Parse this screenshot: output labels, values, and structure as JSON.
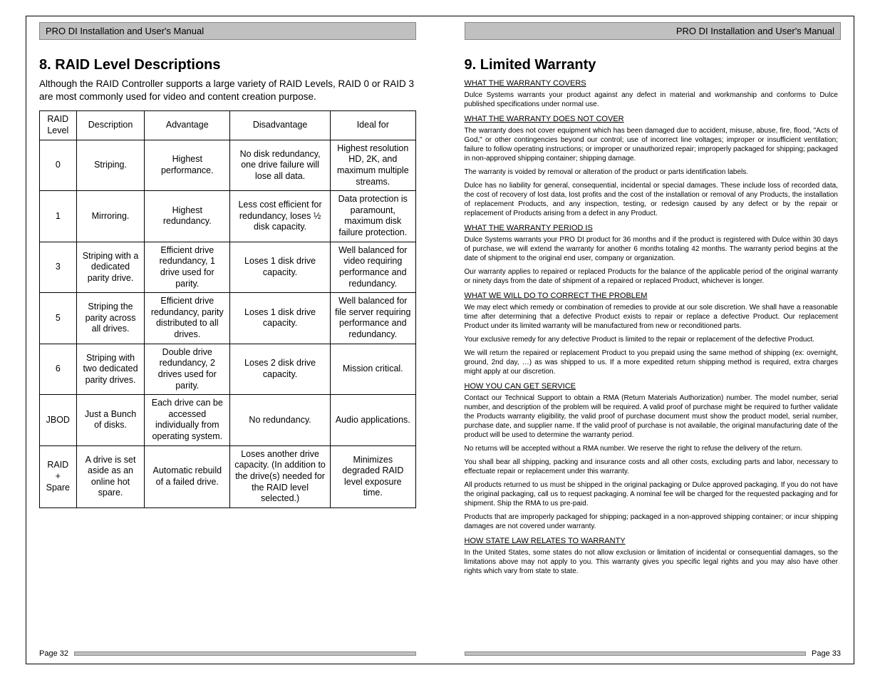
{
  "headerTitle": "PRO DI Installation and User's Manual",
  "leftPage": {
    "heading": "8. RAID Level Descriptions",
    "intro": "Although the RAID Controller supports a large variety of RAID Levels, RAID 0 or RAID 3 are most commonly used for video and content creation purpose.",
    "columns": [
      "RAID Level",
      "Description",
      "Advantage",
      "Disadvantage",
      "Ideal for"
    ],
    "rows": [
      [
        "0",
        "Striping.",
        "Highest performance.",
        "No disk redundancy, one drive failure will lose all data.",
        "Highest resolution HD, 2K, and maximum multiple streams."
      ],
      [
        "1",
        "Mirroring.",
        "Highest redundancy.",
        "Less cost efficient for redundancy, loses ½ disk capacity.",
        "Data protection is paramount, maximum disk failure protection."
      ],
      [
        "3",
        "Striping with a dedicated parity drive.",
        "Efficient drive redundancy, 1 drive used for parity.",
        "Loses 1 disk drive capacity.",
        "Well balanced for video requiring performance and redundancy."
      ],
      [
        "5",
        "Striping the parity across all drives.",
        "Efficient drive redundancy, parity distributed to all drives.",
        "Loses 1 disk drive capacity.",
        "Well balanced for file server requiring performance and redundancy."
      ],
      [
        "6",
        "Striping with two dedicated parity drives.",
        "Double drive redundancy, 2 drives used for parity.",
        "Loses 2 disk drive capacity.",
        "Mission critical."
      ],
      [
        "JBOD",
        "Just a Bunch of disks.",
        "Each drive can be accessed individually from operating system.",
        "No redundancy.",
        "Audio applications."
      ],
      [
        "RAID + Spare",
        "A drive is set aside as an online hot spare.",
        "Automatic rebuild of a failed drive.",
        "Loses another drive capacity. (In addition to the drive(s) needed for the RAID level selected.)",
        "Minimizes degraded RAID level exposure time."
      ]
    ],
    "pageNum": "Page 32"
  },
  "rightPage": {
    "heading": "9. Limited Warranty",
    "sections": [
      {
        "title": "WHAT THE WARRANTY COVERS",
        "paras": [
          "Dulce Systems warrants your product against any defect in material and workmanship and conforms to Dulce published specifications under normal use."
        ]
      },
      {
        "title": "WHAT THE WARRANTY DOES NOT COVER",
        "paras": [
          "The warranty does not cover equipment which has been damaged due to accident, misuse, abuse, fire, flood, \"Acts of God,\" or other contingencies beyond our control; use of incorrect line voltages; improper or insufficient ventilation; failure to follow operating instructions; or improper or unauthorized repair;  improperly packaged for shipping; packaged in non-approved shipping container; shipping damage.",
          "The warranty is voided by removal or alteration of the product or parts identification labels.",
          "Dulce has no liability for general, consequential, incidental or special damages. These include loss of recorded data, the cost of recovery of lost data, lost profits and the cost of the installation or removal of any Products, the installation of replacement Products, and any inspection, testing, or redesign caused by any defect or by the repair or replacement of Products arising from a defect in any Product."
        ]
      },
      {
        "title": "WHAT THE WARRANTY PERIOD IS",
        "paras": [
          "Dulce Systems warrants your PRO DI product for 36 months and if the product is registered with Dulce within 30 days of purchase, we will extend the warranty for another 6 months totaling 42 months. The warranty period begins at the date of shipment to the original end user, company or organization.",
          "Our warranty applies to repaired or replaced Products for the balance of the applicable period of the original warranty or ninety days from the date of shipment of a repaired or replaced Product, whichever is longer."
        ]
      },
      {
        "title": "WHAT WE WILL DO TO CORRECT THE PROBLEM",
        "paras": [
          "We may elect which remedy or combination of remedies to provide at our sole discretion. We shall have a reasonable time after determining that a defective Product exists to repair or replace a defective Product. Our replacement Product under its limited warranty will be manufactured from new or reconditioned parts.",
          "Your exclusive remedy for any defective Product is limited to the repair or replacement of the defective Product.",
          "We will return the repaired or replacement Product to you prepaid using the same method of shipping (ex: overnight, ground, 2nd day, …) as was shipped to us. If a more expedited return shipping method is required, extra charges might apply at our discretion."
        ]
      },
      {
        "title": "HOW YOU CAN GET SERVICE",
        "paras": [
          "Contact our Technical Support to obtain a RMA (Return Materials Authorization) number. The model number, serial number, and description of the problem will be required. A valid proof of purchase might be required to further validate the Products warranty eligibility, the valid proof of purchase document must show the product model, serial number, purchase date, and supplier name. If the valid proof of purchase is not available, the original manufacturing date of the product will be used to determine the warranty period.",
          "No returns will be accepted without a RMA number. We reserve the right to refuse the delivery of the return.",
          "You shall bear all shipping, packing and insurance costs and all other costs, excluding parts and labor, necessary to effectuate repair or replacement under this warranty.",
          "All products returned to us must be shipped in the original packaging or Dulce approved packaging. If you do not have the original packaging, call us to request packaging. A nominal fee will be charged for the requested packaging and for shipment. Ship the RMA to us pre-paid.",
          "Products that are improperly packaged for shipping; packaged in a non-approved shipping container; or incur shipping damages are not covered under warranty."
        ]
      },
      {
        "title": "HOW STATE LAW RELATES TO WARRANTY",
        "paras": [
          "In the United States, some states do not allow exclusion or limitation of incidental or consequential damages, so the limitations above may not apply to you. This warranty gives you specific legal rights and you may also have other rights which vary from state to state."
        ]
      }
    ],
    "pageNum": "Page 33"
  }
}
